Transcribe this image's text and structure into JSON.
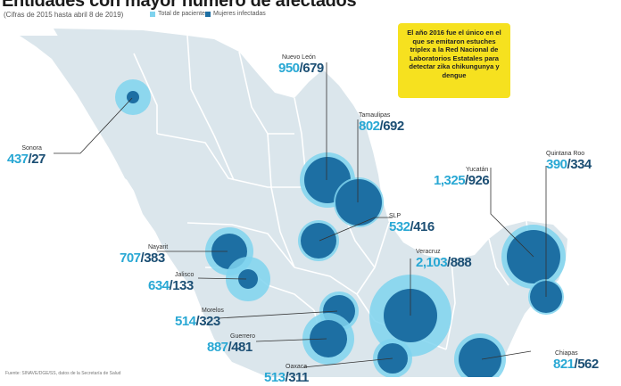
{
  "title": "Entidades con mayor número de afectados",
  "subtitle": "(Cifras de 2015 hasta abril 8 de 2019)",
  "legend": [
    {
      "label": "Total de pacientes",
      "color": "#7fd3ee"
    },
    {
      "label": "Mujeres infectadas",
      "color": "#1d6fa3"
    }
  ],
  "note": "El año 2016 fue el único en el que se emitaron estuches triplex a la Red Nacional de Laboratorios Estatales para detectar zika chikungunya y dengue",
  "states": [
    {
      "id": "sonora",
      "name": "Sonora",
      "total": "437",
      "women": "27"
    },
    {
      "id": "nuevo-leon",
      "name": "Nuevo León",
      "total": "950",
      "women": "679"
    },
    {
      "id": "tamaulipas",
      "name": "Tamaulipas",
      "total": "802",
      "women": "692"
    },
    {
      "id": "slp",
      "name": "SLP",
      "total": "532",
      "women": "416"
    },
    {
      "id": "yucatan",
      "name": "Yucatán",
      "total": "1,325",
      "women": "926"
    },
    {
      "id": "quintana-roo",
      "name": "Quintana Roo",
      "total": "390",
      "women": "334"
    },
    {
      "id": "nayarit",
      "name": "Nayarit",
      "total": "707",
      "women": "383"
    },
    {
      "id": "jalisco",
      "name": "Jalisco",
      "total": "634",
      "women": "133"
    },
    {
      "id": "veracruz",
      "name": "Veracruz",
      "total": "2,103",
      "women": "888"
    },
    {
      "id": "morelos",
      "name": "Morelos",
      "total": "514",
      "women": "323"
    },
    {
      "id": "guerrero",
      "name": "Guerrero",
      "total": "887",
      "women": "481"
    },
    {
      "id": "chiapas",
      "name": "Chiapas",
      "total": "821",
      "women": "562"
    },
    {
      "id": "oaxaca",
      "name": "Oaxaca",
      "total": "513",
      "women": "311"
    }
  ],
  "source": "Fuente: SINAVE/DGE/SS, datos de la Secretaría de Salud",
  "colors": {
    "land": "#dbe6ec",
    "state_border": "#ffffff",
    "outer": "#7fd3ee",
    "inner": "#1d6fa3",
    "leader": "#333333",
    "accent": "#f6e11f"
  }
}
